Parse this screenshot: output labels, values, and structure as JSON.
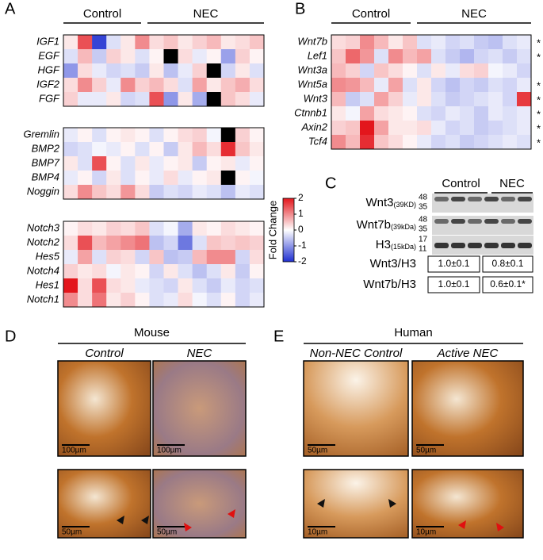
{
  "panel_a": {
    "label": "A",
    "group_labels": [
      "Control",
      "NEC"
    ],
    "heatmaps": [
      {
        "rows": [
          "IGF1",
          "EGF",
          "HGF",
          "IGF2",
          "FGF"
        ],
        "values": [
          [
            0.2,
            1.5,
            -1.8,
            -0.3,
            0.2,
            1.0,
            0.3,
            0.5,
            0.2,
            0.4,
            0.6,
            0.2,
            0.3,
            0.5
          ],
          [
            -0.3,
            0.6,
            -0.5,
            0.4,
            0.2,
            -0.3,
            0.1,
            2.2,
            0.3,
            -0.2,
            0.1,
            -0.9,
            0.4,
            0.1
          ],
          [
            -1.0,
            0.3,
            -0.2,
            -0.4,
            -0.3,
            -0.5,
            0.2,
            -0.6,
            -0.2,
            0.4,
            2.2,
            -0.4,
            0.2,
            -0.3
          ],
          [
            0.3,
            1.0,
            0.4,
            -0.2,
            1.0,
            0.4,
            0.6,
            0.3,
            -0.3,
            0.8,
            0.2,
            0.5,
            0.7,
            0.3
          ],
          [
            0.4,
            -0.2,
            -0.2,
            0.2,
            -0.4,
            -0.3,
            1.5,
            -1.0,
            0.2,
            -0.8,
            3.5,
            0.5,
            0.3,
            -0.2
          ]
        ]
      },
      {
        "rows": [
          "Gremlin",
          "BMP2",
          "BMP7",
          "BMP4",
          "Noggin"
        ],
        "values": [
          [
            -0.2,
            0.1,
            -0.3,
            0.1,
            0.2,
            0.1,
            -0.3,
            0.1,
            0.3,
            0.4,
            -0.1,
            2.2,
            0.4,
            0.1
          ],
          [
            -0.4,
            -0.3,
            -0.1,
            -0.2,
            0.1,
            -0.3,
            0.1,
            -0.5,
            0.2,
            0.6,
            0.3,
            1.8,
            0.5,
            0.2
          ],
          [
            0.2,
            -0.3,
            1.5,
            0.1,
            -0.3,
            0.2,
            -0.2,
            0.1,
            0.2,
            -0.5,
            0.1,
            0.2,
            -0.2,
            0.1
          ],
          [
            -0.2,
            0.1,
            -0.4,
            0.2,
            -0.3,
            0.1,
            -0.2,
            0.3,
            -0.2,
            0.1,
            0.2,
            2.2,
            0.1,
            -0.1
          ],
          [
            0.3,
            1.0,
            0.5,
            0.3,
            0.9,
            0.3,
            -0.5,
            -0.3,
            -0.4,
            -0.2,
            -0.3,
            -0.6,
            -0.2,
            -0.3
          ]
        ]
      },
      {
        "rows": [
          "Notch3",
          "Notch2",
          "Hes5",
          "Notch4",
          "Hes1",
          "Notch1"
        ],
        "values": [
          [
            0.1,
            0.3,
            0.2,
            0.4,
            0.3,
            0.5,
            -0.3,
            -0.1,
            -0.8,
            0.2,
            0.1,
            0.3,
            0.2,
            0.1
          ],
          [
            0.3,
            1.5,
            0.6,
            0.8,
            1.0,
            1.2,
            -0.6,
            -0.4,
            -1.3,
            -0.3,
            0.5,
            0.4,
            0.5,
            0.4
          ],
          [
            -0.2,
            0.8,
            -0.3,
            0.4,
            0.3,
            -0.4,
            0.5,
            -0.6,
            -0.5,
            0.6,
            1.0,
            1.0,
            -0.4,
            0.3
          ],
          [
            0.4,
            0.2,
            0.3,
            -0.1,
            0.2,
            0.1,
            -0.4,
            0.2,
            -0.3,
            -0.6,
            -0.3,
            0.2,
            -0.5,
            0.1
          ],
          [
            2.0,
            0.3,
            1.5,
            0.3,
            0.2,
            -0.2,
            -0.3,
            -0.4,
            0.2,
            -0.3,
            -0.5,
            -0.2,
            -0.4,
            -0.3
          ],
          [
            1.0,
            0.3,
            1.2,
            0.2,
            0.4,
            0.1,
            -0.3,
            -0.2,
            0.3,
            -0.1,
            -0.3,
            0.1,
            -0.4,
            -0.2
          ]
        ]
      }
    ]
  },
  "colorbar": {
    "title": "Fold Change",
    "lim": [
      -2,
      2
    ],
    "ticks": [
      2,
      1,
      0,
      -1,
      -2
    ]
  },
  "panel_b": {
    "label": "B",
    "group_labels": [
      "Control",
      "NEC"
    ],
    "rows": [
      "Wnt7b",
      "Lef1",
      "Wnt3a",
      "Wnt5a",
      "Wnt3",
      "Ctnnb1",
      "Axin2",
      "Tcf4"
    ],
    "significance": [
      "*",
      "*",
      null,
      "*",
      "*",
      "*",
      "*",
      "*"
    ],
    "values": [
      [
        0.3,
        0.4,
        1.0,
        0.6,
        0.2,
        0.5,
        -0.3,
        -0.2,
        -0.4,
        -0.3,
        -0.5,
        -0.6,
        -0.3,
        -0.2
      ],
      [
        0.5,
        1.3,
        0.9,
        -0.3,
        1.0,
        0.6,
        0.8,
        -0.3,
        -0.5,
        -0.7,
        -0.4,
        -0.3,
        -0.5,
        -0.3
      ],
      [
        0.6,
        0.4,
        -0.4,
        0.5,
        0.3,
        0.1,
        -0.3,
        0.2,
        -0.2,
        0.3,
        0.4,
        -0.1,
        -0.2,
        -0.4
      ],
      [
        1.0,
        0.9,
        0.6,
        -0.2,
        0.8,
        -0.3,
        0.2,
        -0.4,
        -0.6,
        -0.4,
        -0.5,
        -0.3,
        -0.4,
        -0.2
      ],
      [
        0.6,
        -0.5,
        -0.3,
        0.8,
        0.4,
        -0.2,
        0.2,
        -0.3,
        -0.5,
        -0.4,
        -0.3,
        -0.2,
        -0.4,
        1.7
      ],
      [
        0.2,
        -0.1,
        0.8,
        0.3,
        0.2,
        0.1,
        -0.3,
        -0.4,
        -0.2,
        -0.3,
        -0.5,
        -0.2,
        -0.3,
        -0.2
      ],
      [
        0.4,
        0.5,
        2.0,
        0.8,
        0.2,
        0.2,
        0.3,
        -0.2,
        -0.4,
        -0.3,
        -0.5,
        -0.4,
        -0.3,
        -0.2
      ],
      [
        1.0,
        0.6,
        1.8,
        0.5,
        0.3,
        0.1,
        -0.2,
        -0.4,
        -0.3,
        -0.5,
        -0.4,
        -0.3,
        -0.2,
        -0.3
      ]
    ]
  },
  "panel_c": {
    "label": "C",
    "group_labels": [
      "Control",
      "NEC"
    ],
    "blots": [
      {
        "name": "Wnt3",
        "sub": "(39KD)",
        "markers": [
          48,
          35
        ]
      },
      {
        "name": "Wnt7b",
        "sub": "(39kDa)",
        "markers": [
          48,
          35
        ]
      },
      {
        "name": "H3",
        "sub": "(15kDa)",
        "markers": [
          17,
          11
        ]
      }
    ],
    "quantification": [
      {
        "name": "Wnt3/H3",
        "values": [
          "1.0±0.1",
          "0.8±0.1"
        ]
      },
      {
        "name": "Wnt7b/H3",
        "values": [
          "1.0±0.1",
          "0.6±0.1*"
        ]
      }
    ]
  },
  "panel_d": {
    "label": "D",
    "title": "Mouse",
    "columns": [
      "Control",
      "NEC"
    ],
    "scale_bars_top": [
      "100µm",
      "100µm"
    ],
    "scale_bars_bottom": [
      "50µm",
      "50µm"
    ]
  },
  "panel_e": {
    "label": "E",
    "title": "Human",
    "columns": [
      "Non-NEC Control",
      "Active NEC"
    ],
    "scale_bars_top": [
      "50µm",
      "50µm"
    ],
    "scale_bars_bottom": [
      "10µm",
      "10µm"
    ]
  }
}
